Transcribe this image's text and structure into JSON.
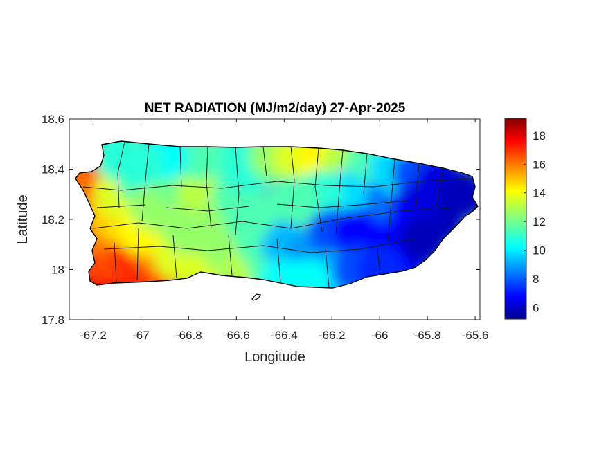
{
  "chart_data": {
    "type": "heatmap",
    "title": "NET RADIATION (MJ/m2/day) 27-Apr-2025",
    "xlabel": "Longitude",
    "ylabel": "Latitude",
    "xlim": [
      -67.3,
      -65.58
    ],
    "ylim": [
      17.8,
      18.6
    ],
    "x_ticks": [
      -67.2,
      -67,
      -66.8,
      -66.6,
      -66.4,
      -66.2,
      -66,
      -65.8,
      -65.6
    ],
    "x_tick_labels": [
      "-67.2",
      "-67",
      "-66.8",
      "-66.6",
      "-66.4",
      "-66.2",
      "-66",
      "-65.8",
      "-65.6"
    ],
    "y_ticks": [
      17.8,
      18,
      18.2,
      18.4,
      18.6
    ],
    "y_tick_labels": [
      "17.8",
      "18",
      "18.2",
      "18.4",
      "18.6"
    ],
    "colorbar": {
      "colormap": "jet",
      "range": [
        5.2,
        19.2
      ],
      "ticks": [
        6,
        8,
        10,
        12,
        14,
        16,
        18
      ],
      "tick_labels": [
        "6",
        "8",
        "10",
        "12",
        "14",
        "16",
        "18"
      ]
    },
    "region": "Puerto Rico municipalities",
    "grid": false,
    "values_lonlat": [
      [
        -67.2,
        17.97,
        18.5
      ],
      [
        -67.15,
        17.97,
        18
      ],
      [
        -67.1,
        17.98,
        17.5
      ],
      [
        -67.0,
        17.99,
        17
      ],
      [
        -66.92,
        18.0,
        16.5
      ],
      [
        -67.18,
        18.05,
        16.5
      ],
      [
        -67.12,
        18.05,
        16.5
      ],
      [
        -67.02,
        18.06,
        17
      ],
      [
        -66.95,
        18.08,
        16
      ],
      [
        -66.9,
        18.06,
        15.5
      ],
      [
        -67.18,
        18.15,
        15.8
      ],
      [
        -67.2,
        18.22,
        15.5
      ],
      [
        -67.22,
        18.3,
        15
      ],
      [
        -67.25,
        18.36,
        16
      ],
      [
        -67.1,
        18.2,
        14.5
      ],
      [
        -67.0,
        18.15,
        14
      ],
      [
        -66.85,
        18.05,
        13.5
      ],
      [
        -66.75,
        18.0,
        13.5
      ],
      [
        -67.1,
        18.3,
        13.5
      ],
      [
        -67.1,
        18.45,
        11
      ],
      [
        -67.0,
        18.35,
        11.5
      ],
      [
        -66.95,
        18.25,
        12.5
      ],
      [
        -66.85,
        18.2,
        12.5
      ],
      [
        -66.85,
        18.35,
        12
      ],
      [
        -66.75,
        18.3,
        13
      ],
      [
        -66.7,
        18.25,
        13
      ],
      [
        -66.65,
        18.2,
        12.5
      ],
      [
        -66.8,
        18.15,
        12.5
      ],
      [
        -66.65,
        18.08,
        12.5
      ],
      [
        -66.55,
        18.0,
        13
      ],
      [
        -66.45,
        18.0,
        11.5
      ],
      [
        -66.6,
        18.3,
        11.5
      ],
      [
        -66.55,
        18.4,
        11
      ],
      [
        -66.6,
        18.45,
        11
      ],
      [
        -66.45,
        18.45,
        12.5
      ],
      [
        -66.35,
        18.45,
        13.5
      ],
      [
        -66.25,
        18.45,
        14
      ],
      [
        -66.15,
        18.42,
        13
      ],
      [
        -66.05,
        18.42,
        11.5
      ],
      [
        -65.95,
        18.4,
        10
      ],
      [
        -65.85,
        18.38,
        8
      ],
      [
        -65.75,
        18.35,
        6.5
      ],
      [
        -65.65,
        18.3,
        6
      ],
      [
        -65.75,
        18.2,
        6
      ],
      [
        -65.85,
        18.25,
        6.5
      ],
      [
        -65.95,
        18.2,
        7
      ],
      [
        -66.05,
        18.25,
        8.5
      ],
      [
        -66.15,
        18.3,
        10
      ],
      [
        -66.25,
        18.3,
        11
      ],
      [
        -66.35,
        18.28,
        11.5
      ],
      [
        -66.45,
        18.2,
        11.5
      ],
      [
        -66.5,
        18.1,
        11.5
      ],
      [
        -66.4,
        18.1,
        9.5
      ],
      [
        -66.3,
        18.05,
        9
      ],
      [
        -66.2,
        18.15,
        8
      ],
      [
        -66.1,
        18.15,
        7
      ],
      [
        -66.0,
        18.1,
        7
      ],
      [
        -65.9,
        18.05,
        7
      ],
      [
        -65.82,
        18.12,
        6
      ],
      [
        -66.2,
        17.98,
        9.5
      ],
      [
        -66.1,
        18.0,
        8
      ],
      [
        -66.0,
        18.0,
        7.5
      ],
      [
        -66.3,
        17.95,
        10.5
      ],
      [
        -66.4,
        17.95,
        10.5
      ],
      [
        -66.55,
        18.2,
        11.5
      ],
      [
        -66.75,
        18.45,
        11.5
      ],
      [
        -66.9,
        18.45,
        10.5
      ],
      [
        -67.0,
        18.42,
        11
      ]
    ]
  }
}
